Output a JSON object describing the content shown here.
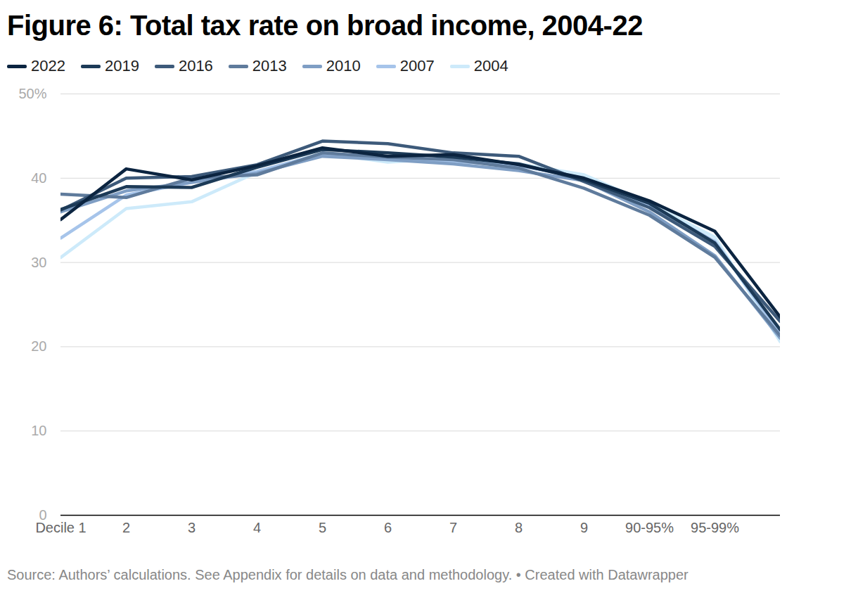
{
  "chart_data": {
    "type": "line",
    "title": "Figure 6: Total tax rate on broad income, 2004-22",
    "source": "Source: Authors’ calculations. See Appendix for details on data and methodology. • Created with Datawrapper",
    "categories": [
      "Decile 1",
      "2",
      "3",
      "4",
      "5",
      "6",
      "7",
      "8",
      "9",
      "90-95%",
      "95-99%",
      null
    ],
    "ylim": [
      0,
      50
    ],
    "yticks": [
      0,
      10,
      20,
      30,
      40,
      {
        "value": 50,
        "label": "50%"
      }
    ],
    "grid": true,
    "series": [
      {
        "name": "2022",
        "color": "#0b2440",
        "values": [
          35.1,
          41.1,
          39.8,
          41.5,
          43.6,
          42.6,
          42.8,
          41.6,
          40.0,
          37.3,
          33.7,
          23.5
        ]
      },
      {
        "name": "2019",
        "color": "#1c3a57",
        "values": [
          36.3,
          39.0,
          38.9,
          41.3,
          43.4,
          43.0,
          42.5,
          41.7,
          39.8,
          37.0,
          32.3,
          22.0
        ]
      },
      {
        "name": "2016",
        "color": "#3d5a7a",
        "values": [
          36.2,
          40.0,
          40.2,
          41.6,
          44.4,
          44.1,
          43.0,
          42.6,
          39.6,
          36.5,
          31.9,
          23.0
        ]
      },
      {
        "name": "2013",
        "color": "#5f7b9c",
        "values": [
          38.1,
          37.7,
          40.0,
          40.4,
          43.0,
          42.5,
          42.2,
          41.2,
          38.8,
          35.6,
          30.6,
          21.3
        ]
      },
      {
        "name": "2010",
        "color": "#7f9ec4",
        "values": [
          36.0,
          38.5,
          39.5,
          40.6,
          42.6,
          42.2,
          41.7,
          40.9,
          39.7,
          36.0,
          30.8,
          21.0
        ]
      },
      {
        "name": "2007",
        "color": "#a6c4ea",
        "values": [
          32.9,
          38.0,
          39.5,
          40.8,
          42.9,
          42.5,
          42.0,
          41.5,
          40.0,
          36.8,
          32.5,
          21.5
        ]
      },
      {
        "name": "2004",
        "color": "#cdeafa",
        "values": [
          30.6,
          36.4,
          37.2,
          40.7,
          43.0,
          41.9,
          42.4,
          41.7,
          40.4,
          37.0,
          33.0,
          20.6
        ]
      }
    ]
  }
}
